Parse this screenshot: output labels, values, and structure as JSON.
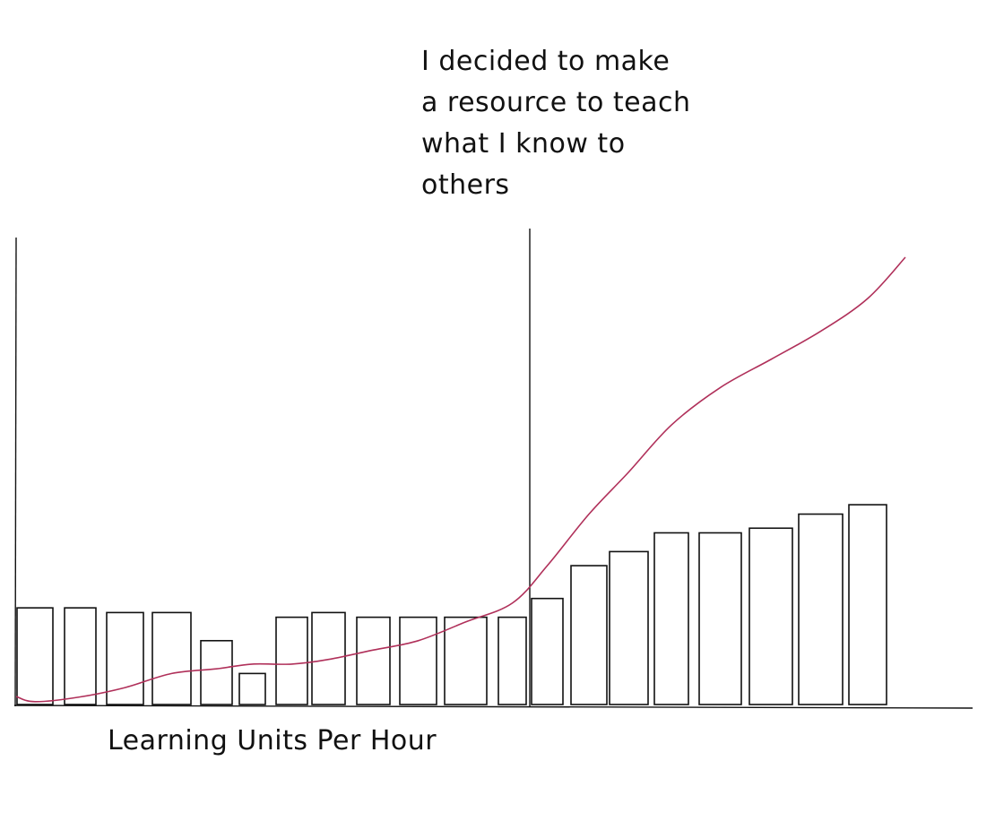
{
  "chart_data": {
    "type": "bar",
    "title": "",
    "xlabel": "Learning Units Per Hour",
    "ylabel": "",
    "ylim": [
      0,
      100
    ],
    "grid": false,
    "legend": "none",
    "values": [
      21,
      21,
      20,
      20,
      14,
      7,
      19,
      20,
      19,
      19,
      19,
      19,
      23,
      30,
      33,
      37,
      37,
      38,
      41,
      43
    ],
    "series": [
      {
        "type": "line",
        "values": [
          1,
          2,
          4,
          7,
          8,
          9,
          9,
          10,
          12,
          14,
          18,
          22,
          30,
          41,
          50,
          60,
          68,
          74,
          80,
          87
        ]
      }
    ],
    "annotations": [
      {
        "text_lines": [
          "I decided to make",
          "a resource to teach",
          "what I know to",
          "others"
        ],
        "marker": "vertical-line",
        "after_bar_index": 11
      }
    ],
    "colors": {
      "bar_stroke": "#111111",
      "bar_fill": "#ffffff",
      "axis": "#111111",
      "line": "#b0305a"
    }
  }
}
